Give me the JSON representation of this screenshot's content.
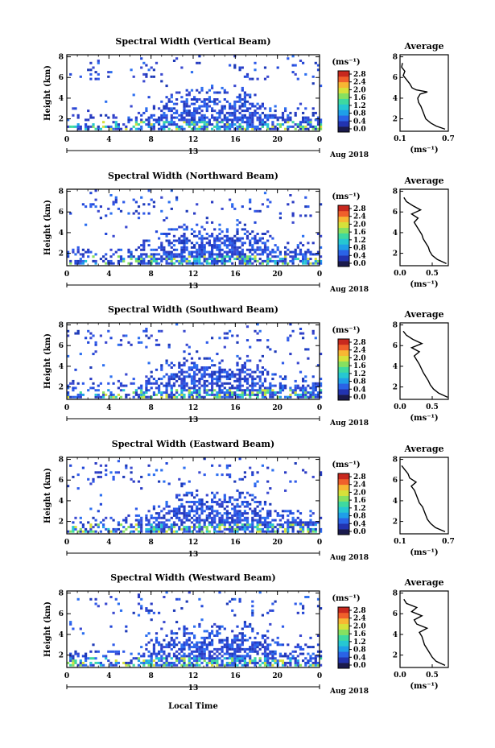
{
  "figure": {
    "xlabel": "Local Time",
    "date_label": "Aug 2018",
    "day_label": "13",
    "colorbar_unit": "(ms⁻¹)",
    "colorbar_ticks": [
      "0.0",
      "0.4",
      "0.8",
      "1.2",
      "1.6",
      "2.0",
      "2.4",
      "2.8"
    ],
    "colorbar_colors": [
      "#1a1a4d",
      "#2233b0",
      "#2a63e6",
      "#1f9fe8",
      "#26c7d2",
      "#3ed9a0",
      "#86e060",
      "#d6e13a",
      "#f7b733",
      "#f0602b",
      "#c8281e"
    ],
    "average_title": "Average",
    "average_xlabel": "(ms⁻¹)"
  },
  "chart_data": [
    {
      "type": "heatmap",
      "title": "Spectral Width (Vertical Beam)",
      "ylabel": "Height (km)",
      "x_ticks": [
        "0",
        "4",
        "8",
        "12",
        "16",
        "20",
        "0"
      ],
      "y_ticks": [
        "2",
        "4",
        "6",
        "8"
      ],
      "xlim": [
        0,
        24
      ],
      "ylim": [
        0.8,
        8.2
      ],
      "note": "reflectivity-like colored pixels of spectral width (ms-1) vs local time and height",
      "average": {
        "title": "Average",
        "x_ticks": [
          "0.1",
          "0.7"
        ],
        "xlim": [
          0.1,
          0.7
        ],
        "y_ticks": [
          "2",
          "4",
          "6",
          "8"
        ],
        "ylim": [
          0.8,
          8.2
        ],
        "height": [
          1.0,
          1.3,
          1.6,
          2.0,
          2.4,
          2.8,
          3.2,
          3.6,
          4.0,
          4.4,
          4.6,
          4.8,
          5.0,
          5.4,
          5.8,
          6.2,
          6.6,
          7.0,
          7.4
        ],
        "width": [
          0.66,
          0.55,
          0.48,
          0.42,
          0.4,
          0.38,
          0.36,
          0.33,
          0.32,
          0.35,
          0.44,
          0.3,
          0.25,
          0.22,
          0.18,
          0.14,
          0.16,
          0.12,
          0.13
        ]
      }
    },
    {
      "type": "heatmap",
      "title": "Spectral Width (Northward Beam)",
      "ylabel": "Height (km)",
      "x_ticks": [
        "0",
        "4",
        "8",
        "12",
        "16",
        "20",
        "0"
      ],
      "y_ticks": [
        "2",
        "4",
        "6",
        "8"
      ],
      "xlim": [
        0,
        24
      ],
      "ylim": [
        0.8,
        8.2
      ],
      "average": {
        "title": "Average",
        "x_ticks": [
          "0.0",
          "0.5"
        ],
        "xlim": [
          0.0,
          0.75
        ],
        "y_ticks": [
          "2",
          "4",
          "6",
          "8"
        ],
        "ylim": [
          0.8,
          8.2
        ],
        "height": [
          1.0,
          1.4,
          1.8,
          2.2,
          2.6,
          3.0,
          3.4,
          3.8,
          4.2,
          4.6,
          5.0,
          5.4,
          5.8,
          6.2,
          6.6,
          7.0,
          7.4
        ],
        "width": [
          0.72,
          0.58,
          0.5,
          0.46,
          0.44,
          0.4,
          0.36,
          0.34,
          0.3,
          0.26,
          0.22,
          0.28,
          0.18,
          0.32,
          0.2,
          0.1,
          0.06
        ]
      }
    },
    {
      "type": "heatmap",
      "title": "Spectral Width (Southward Beam)",
      "ylabel": "Height (km)",
      "x_ticks": [
        "0",
        "4",
        "8",
        "12",
        "16",
        "20",
        "0"
      ],
      "y_ticks": [
        "2",
        "4",
        "6",
        "8"
      ],
      "xlim": [
        0,
        24
      ],
      "ylim": [
        0.8,
        8.2
      ],
      "average": {
        "title": "Average",
        "x_ticks": [
          "0.0",
          "0.5"
        ],
        "xlim": [
          0.0,
          0.75
        ],
        "y_ticks": [
          "2",
          "4",
          "6",
          "8"
        ],
        "ylim": [
          0.8,
          8.2
        ],
        "height": [
          1.0,
          1.4,
          1.8,
          2.2,
          2.6,
          3.0,
          3.4,
          3.8,
          4.2,
          4.6,
          5.0,
          5.4,
          5.8,
          6.2,
          6.6,
          7.0,
          7.4
        ],
        "width": [
          0.74,
          0.6,
          0.52,
          0.47,
          0.44,
          0.4,
          0.36,
          0.33,
          0.3,
          0.26,
          0.22,
          0.3,
          0.18,
          0.34,
          0.2,
          0.1,
          0.05
        ]
      }
    },
    {
      "type": "heatmap",
      "title": "Spectral Width (Eastward Beam)",
      "ylabel": "Height (km)",
      "x_ticks": [
        "0",
        "4",
        "8",
        "12",
        "16",
        "20",
        "0"
      ],
      "y_ticks": [
        "2",
        "4",
        "6",
        "8"
      ],
      "xlim": [
        0,
        24
      ],
      "ylim": [
        0.8,
        8.2
      ],
      "average": {
        "title": "Average",
        "x_ticks": [
          "0.1",
          "0.7"
        ],
        "xlim": [
          0.1,
          0.7
        ],
        "y_ticks": [
          "2",
          "4",
          "6",
          "8"
        ],
        "ylim": [
          0.8,
          8.2
        ],
        "height": [
          1.0,
          1.4,
          1.8,
          2.2,
          2.6,
          3.0,
          3.4,
          3.8,
          4.2,
          4.6,
          5.0,
          5.4,
          5.8,
          6.2,
          6.6,
          7.0,
          7.4
        ],
        "width": [
          0.66,
          0.54,
          0.48,
          0.44,
          0.42,
          0.4,
          0.38,
          0.34,
          0.32,
          0.3,
          0.28,
          0.24,
          0.3,
          0.22,
          0.2,
          0.16,
          0.12
        ]
      }
    },
    {
      "type": "heatmap",
      "title": "Spectral Width (Westward Beam)",
      "ylabel": "Height (km)",
      "x_ticks": [
        "0",
        "4",
        "8",
        "12",
        "16",
        "20",
        "0"
      ],
      "y_ticks": [
        "2",
        "4",
        "6",
        "8"
      ],
      "xlim": [
        0,
        24
      ],
      "ylim": [
        0.8,
        8.2
      ],
      "average": {
        "title": "Average",
        "x_ticks": [
          "0.0",
          "0.5"
        ],
        "xlim": [
          0.0,
          0.75
        ],
        "y_ticks": [
          "2",
          "4",
          "6",
          "8"
        ],
        "ylim": [
          0.8,
          8.2
        ],
        "height": [
          1.0,
          1.4,
          1.8,
          2.2,
          2.6,
          3.0,
          3.4,
          3.8,
          4.2,
          4.6,
          5.0,
          5.4,
          5.8,
          6.2,
          6.6,
          7.0,
          7.4
        ],
        "width": [
          0.7,
          0.56,
          0.5,
          0.46,
          0.42,
          0.38,
          0.36,
          0.34,
          0.3,
          0.42,
          0.26,
          0.22,
          0.34,
          0.18,
          0.26,
          0.1,
          0.06
        ]
      }
    }
  ]
}
